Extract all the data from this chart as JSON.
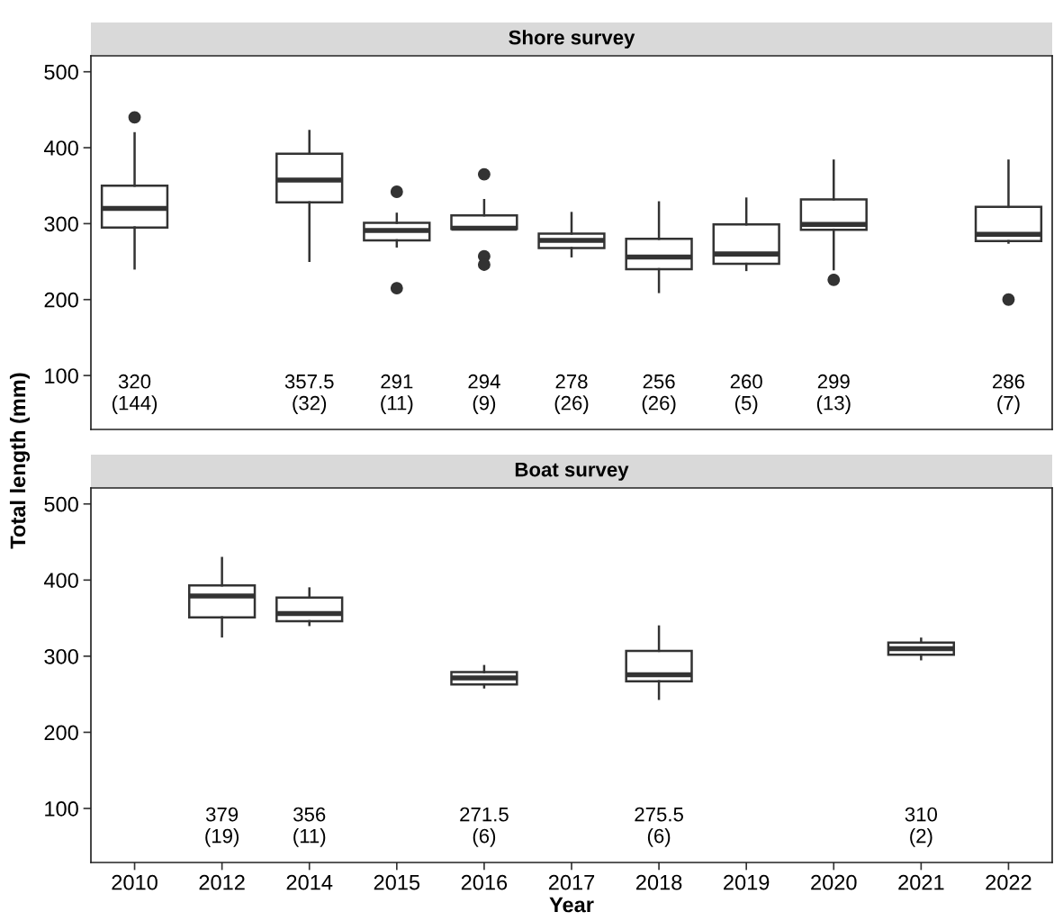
{
  "chart_data": [
    {
      "type": "box",
      "title": "Shore survey",
      "ylabel": "Total length (mm)",
      "categories": [
        "2010",
        "2012",
        "2014",
        "2015",
        "2016",
        "2017",
        "2018",
        "2019",
        "2020",
        "2021",
        "2022"
      ],
      "boxes": [
        {
          "low": 241,
          "q1": 295,
          "median": 320,
          "q3": 350,
          "high": 419,
          "outliers": [
            440
          ]
        },
        null,
        {
          "low": 251,
          "q1": 328,
          "median": 357.5,
          "q3": 392,
          "high": 422
        },
        {
          "low": 270,
          "q1": 278,
          "median": 291,
          "q3": 301,
          "high": 313,
          "outliers": [
            342,
            215
          ]
        },
        {
          "low": 293,
          "q1": 293,
          "median": 294,
          "q3": 311,
          "high": 331,
          "outliers": [
            365,
            257,
            246
          ]
        },
        {
          "low": 257,
          "q1": 268,
          "median": 278,
          "q3": 287,
          "high": 314
        },
        {
          "low": 210,
          "q1": 240,
          "median": 256,
          "q3": 280,
          "high": 328
        },
        {
          "low": 239,
          "q1": 247,
          "median": 260,
          "q3": 299,
          "high": 333
        },
        {
          "low": 240,
          "q1": 292,
          "median": 299,
          "q3": 332,
          "high": 383,
          "outliers": [
            226
          ]
        },
        null,
        {
          "low": 275,
          "q1": 277,
          "median": 286,
          "q3": 322,
          "high": 383,
          "outliers": [
            200
          ]
        }
      ],
      "color": "#333333",
      "ylim": [
        29,
        521
      ],
      "yticks": [
        100,
        200,
        300,
        400,
        500
      ],
      "tick_labels": "y",
      "grid": false,
      "annotations": [
        "320\n(144)",
        "357.5\n(32)",
        "291\n(11)",
        "294\n(9)",
        "278\n(26)",
        "256\n(26)",
        "260\n(5)",
        "299\n(13)",
        "286\n(7)"
      ]
    },
    {
      "type": "box",
      "title": "Boat survey",
      "xlabel": "Year",
      "categories": [
        "2010",
        "2012",
        "2014",
        "2015",
        "2016",
        "2017",
        "2018",
        "2019",
        "2020",
        "2021",
        "2022"
      ],
      "boxes": [
        null,
        {
          "low": 326,
          "q1": 351,
          "median": 379,
          "q3": 393,
          "high": 429
        },
        {
          "low": 341,
          "q1": 346,
          "median": 356,
          "q3": 377,
          "high": 389
        },
        null,
        {
          "low": 259,
          "q1": 263,
          "median": 271.5,
          "q3": 279,
          "high": 287
        },
        null,
        {
          "low": 244,
          "q1": 267,
          "median": 275.5,
          "q3": 307,
          "high": 339
        },
        null,
        null,
        {
          "low": 296,
          "q1": 302,
          "median": 310,
          "q3": 318,
          "high": 323
        },
        null
      ],
      "color": "#333333",
      "ylim": [
        29,
        521
      ],
      "yticks": [
        100,
        200,
        300,
        400,
        500
      ],
      "grid": false,
      "annotations": [
        "379\n(19)",
        "356\n(11)",
        "271.5\n(6)",
        "275.5\n(6)",
        "310\n(2)"
      ]
    }
  ]
}
